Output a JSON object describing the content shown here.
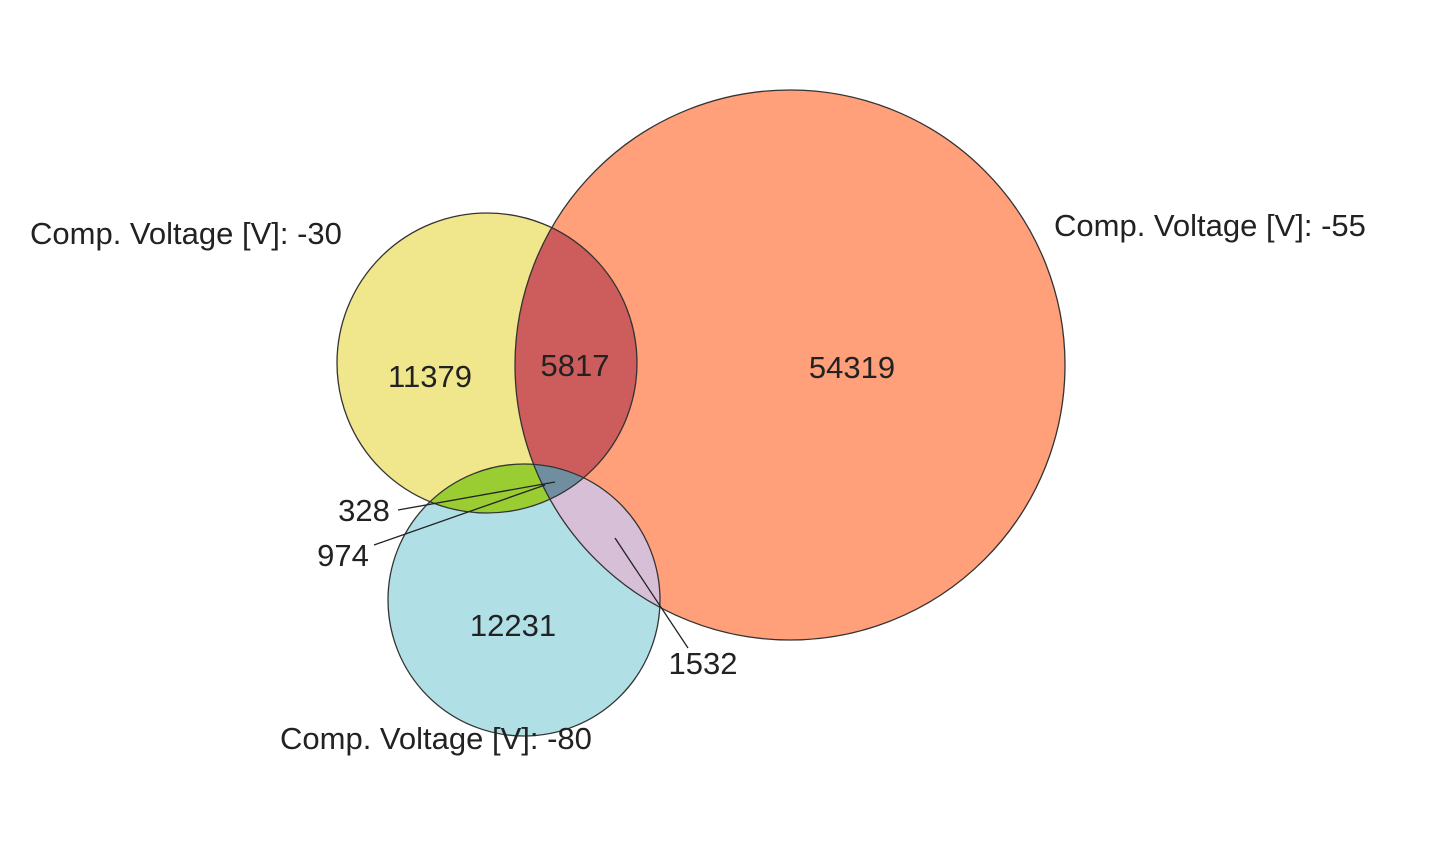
{
  "sets": [
    {
      "label": "Comp. Voltage [V]: -30"
    },
    {
      "label": "Comp. Voltage [V]: -55"
    },
    {
      "label": "Comp. Voltage [V]: -80"
    }
  ],
  "regions": [
    11379,
    5817,
    54319,
    328,
    974,
    12231,
    1532
  ]
}
